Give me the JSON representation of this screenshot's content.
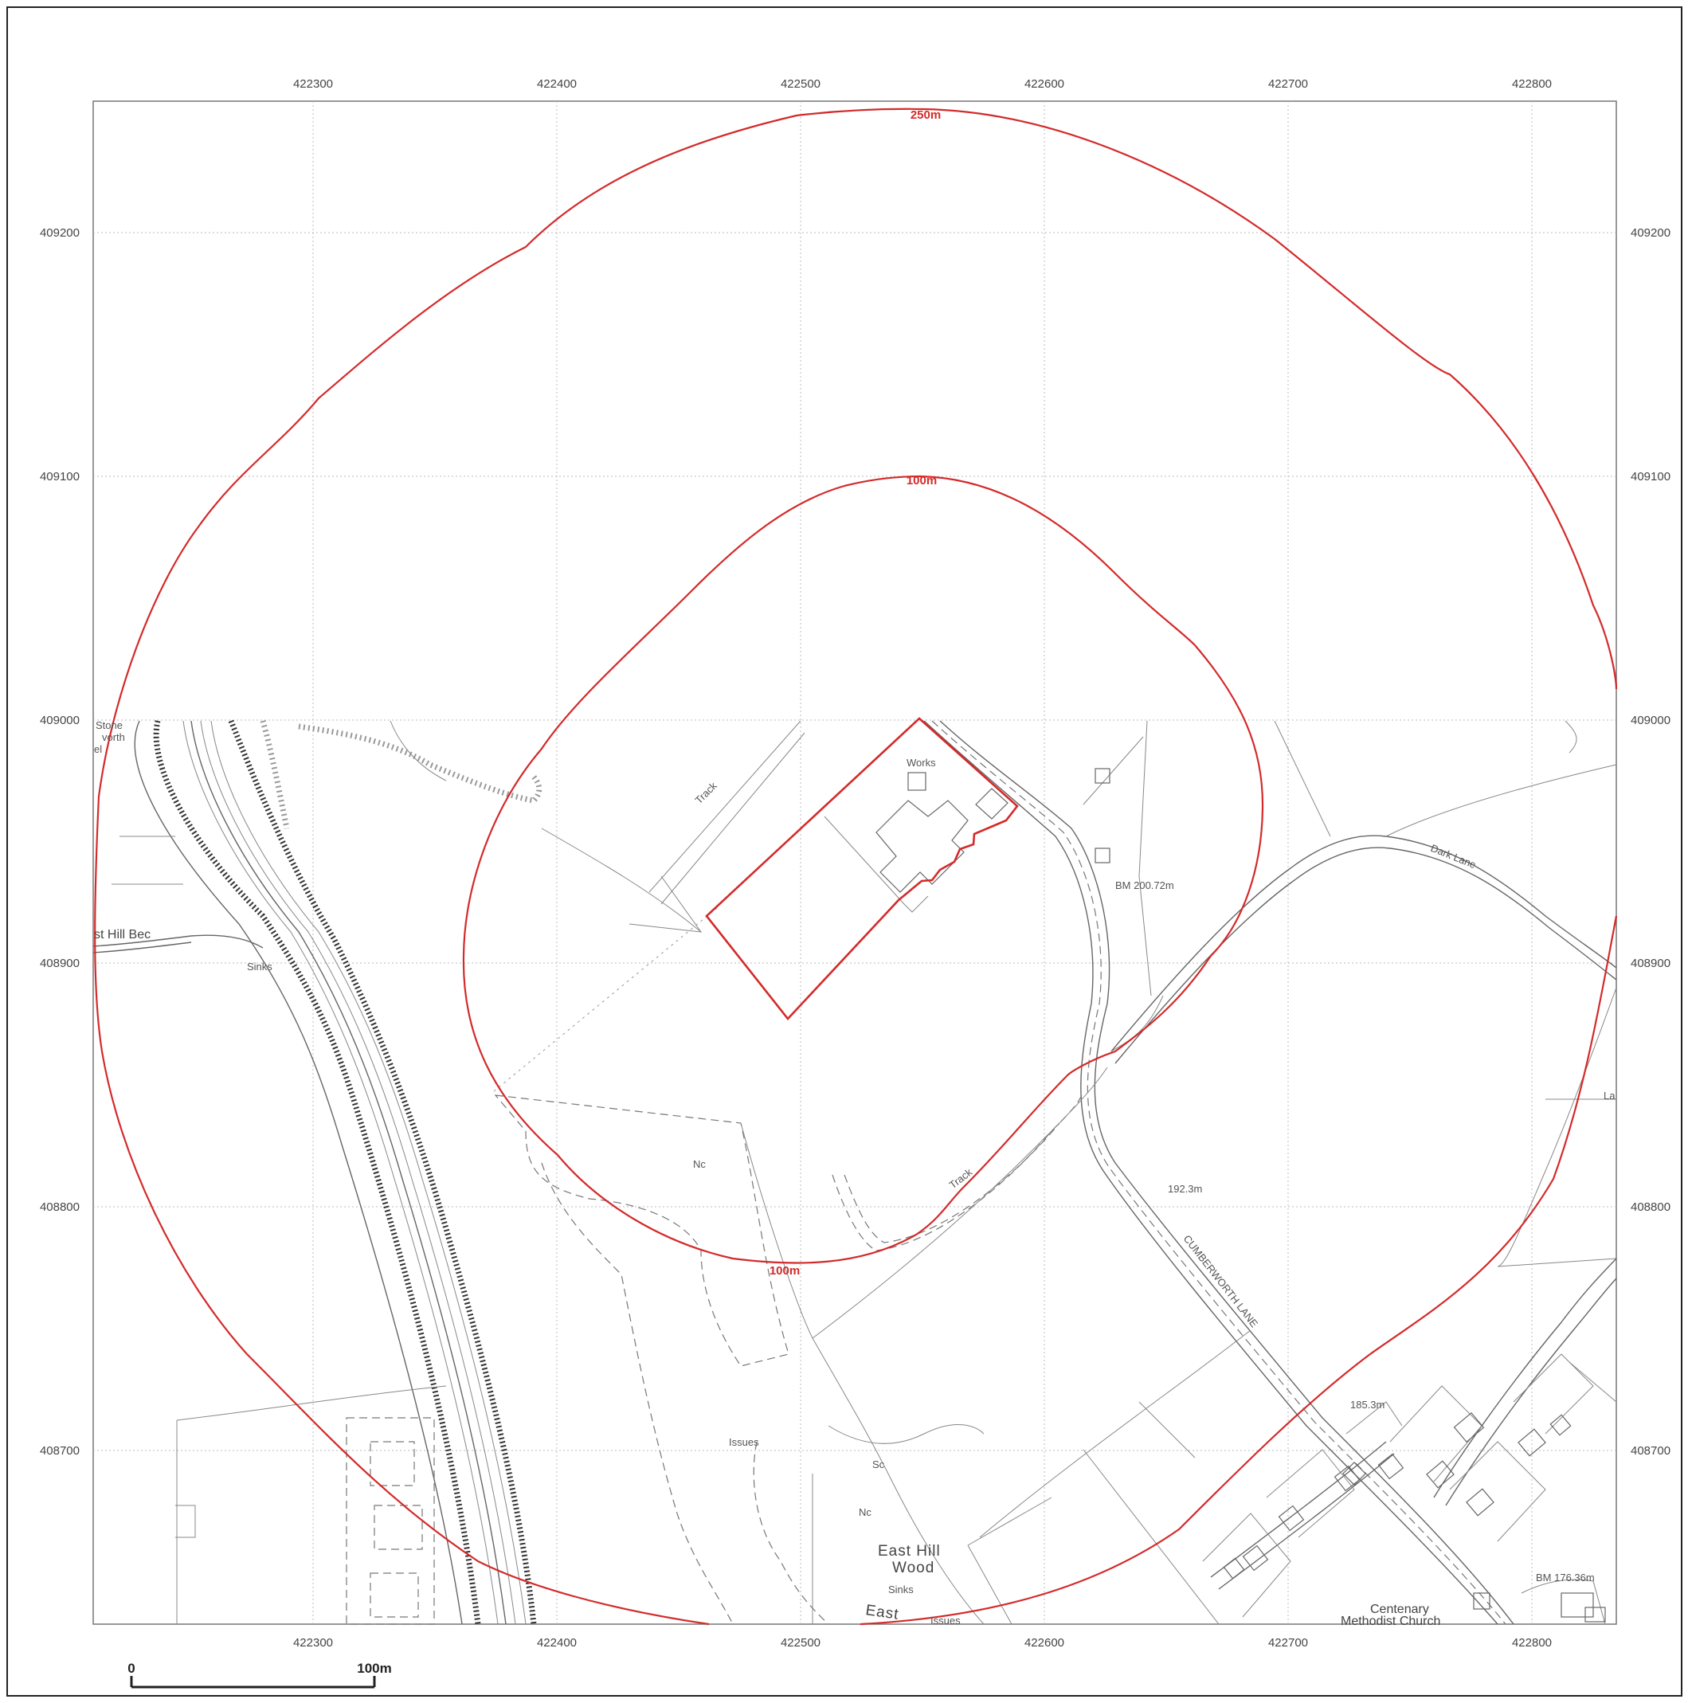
{
  "map": {
    "easting_labels": [
      "422300",
      "422400",
      "422500",
      "422600",
      "422700",
      "422800"
    ],
    "northing_labels": [
      "409200",
      "409100",
      "409000",
      "408900",
      "408800",
      "408700"
    ],
    "buffer_labels": {
      "outer": "250m",
      "inner_top": "100m",
      "inner_bottom": "100m"
    },
    "features": {
      "works": "Works",
      "track_north": "Track",
      "track_south": "Track",
      "bm_north": "BM  200.72m",
      "spot_192": "192.3m",
      "spot_185": "185.3m",
      "bm_south": "BM  176.36m",
      "cumberworth_lane": "CUMBERWORTH LANE",
      "dark_lane": "Dark Lane",
      "nc_1": "Nc",
      "nc_2": "Nc",
      "sc": "Sc",
      "issues_1": "Issues",
      "issues_2": "Issues",
      "sinks_1": "Sinks",
      "sinks_2": "Sinks",
      "east_hill_wood_1": "East  Hill",
      "east_hill_wood_2": "Wood",
      "east": "East",
      "east_hill_beck": "st  Hill  Bec",
      "church_1": "Centenary",
      "church_2": "Methodist  Church",
      "stone_1": "Stone",
      "stone_2": "vorth",
      "stone_3": "el",
      "la": "La"
    }
  },
  "scale_bar": {
    "start": "0",
    "end": "100m"
  }
}
